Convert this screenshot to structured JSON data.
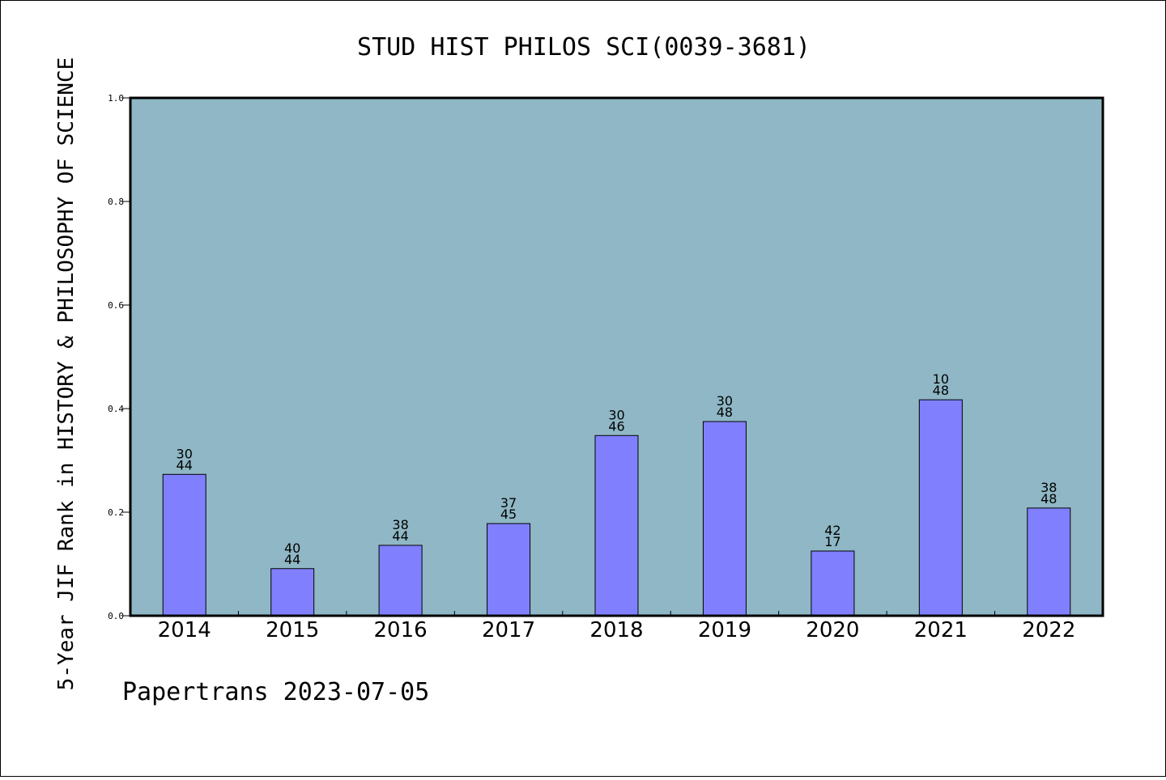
{
  "chart_data": {
    "type": "bar",
    "title": "STUD HIST PHILOS SCI(0039-3681)",
    "ylabel": "5-Year JIF Rank in HISTORY & PHILOSOPHY OF SCIENCE",
    "xlabel": "",
    "ylim": [
      0,
      1.0
    ],
    "yticks": [
      "0.0",
      "0.2",
      "0.4",
      "0.6",
      "0.8",
      "1.0"
    ],
    "grid": false,
    "categories": [
      "2014",
      "2015",
      "2016",
      "2017",
      "2018",
      "2019",
      "2020",
      "2021",
      "2022"
    ],
    "values": [
      0.273,
      0.091,
      0.136,
      0.178,
      0.348,
      0.375,
      0.125,
      0.417,
      0.208
    ],
    "labels_top": [
      "30",
      "40",
      "38",
      "37",
      "30",
      "30",
      "42",
      "10",
      "38"
    ],
    "labels_bottom": [
      "44",
      "44",
      "44",
      "45",
      "46",
      "48",
      "17",
      "48",
      "48"
    ],
    "colors": {
      "plot_background": "#8fb7c5",
      "bar": "#8080ff",
      "bar_edge": "#000000"
    }
  },
  "footer": "Papertrans 2023-07-05"
}
